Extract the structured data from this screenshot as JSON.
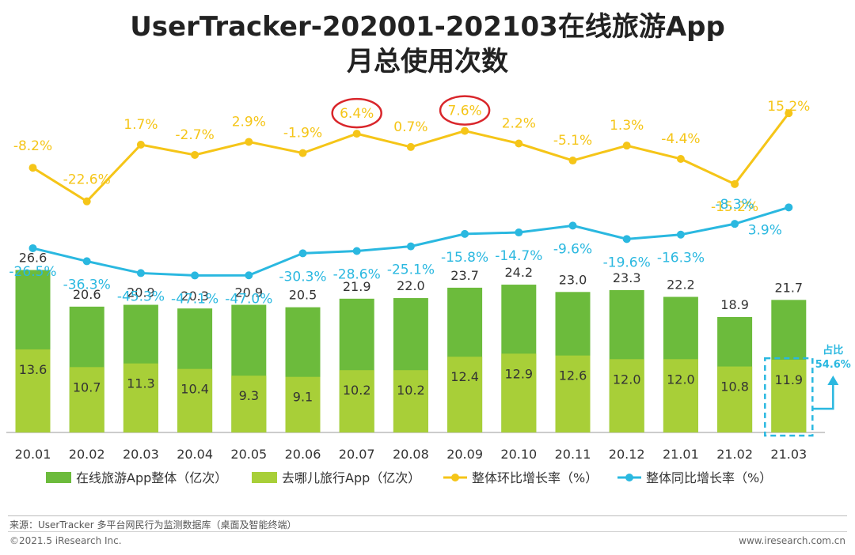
{
  "chart_data": {
    "type": "bar+line",
    "title_line1": "UserTracker-202001-202103在线旅游App",
    "title_line2": "月总使用次数",
    "categories": [
      "20.01",
      "20.02",
      "20.03",
      "20.04",
      "20.05",
      "20.06",
      "20.07",
      "20.08",
      "20.09",
      "20.10",
      "20.11",
      "20.12",
      "21.01",
      "21.02",
      "21.03"
    ],
    "bar_series": [
      {
        "name": "在线旅游App整体（亿次）",
        "color": "#6cbb3c",
        "values": [
          26.6,
          20.6,
          20.9,
          20.3,
          20.9,
          20.5,
          21.9,
          22.0,
          23.7,
          24.2,
          23.0,
          23.3,
          22.2,
          18.9,
          21.7
        ]
      },
      {
        "name": "去哪儿旅行App（亿次）",
        "color": "#a8cf38",
        "values": [
          13.6,
          10.7,
          11.3,
          10.4,
          9.3,
          9.1,
          10.2,
          10.2,
          12.4,
          12.9,
          12.6,
          12.0,
          12.0,
          10.8,
          11.9
        ]
      }
    ],
    "line_series": [
      {
        "name": "整体环比增长率（%）",
        "color": "#f5c518",
        "values": [
          -8.2,
          -22.6,
          1.7,
          -2.7,
          2.9,
          -1.9,
          6.4,
          0.7,
          7.6,
          2.2,
          -5.1,
          1.3,
          -4.4,
          -15.2,
          15.2
        ],
        "labels": [
          "-8.2%",
          "-22.6%",
          "1.7%",
          "-2.7%",
          "2.9%",
          "-1.9%",
          "6.4%",
          "0.7%",
          "7.6%",
          "2.2%",
          "-5.1%",
          "1.3%",
          "-4.4%",
          "-15.2%",
          "15.2%"
        ]
      },
      {
        "name": "整体同比增长率（%）",
        "color": "#2ab8e0",
        "values": [
          -26.5,
          -36.3,
          -45.3,
          -47.1,
          -47.0,
          -30.3,
          -28.6,
          -25.1,
          -15.8,
          -14.7,
          -9.6,
          -19.6,
          -16.3,
          -8.3,
          3.9
        ],
        "labels": [
          "-26.5%",
          "-36.3%",
          "-45.3%",
          "-47.1%",
          "-47.0%",
          "-30.3%",
          "-28.6%",
          "-25.1%",
          "-15.8%",
          "-14.7%",
          "-9.6%",
          "-19.6%",
          "-16.3%",
          "-8.3%",
          "3.9%"
        ]
      }
    ],
    "highlighted_points": [
      "20.07",
      "20.09"
    ],
    "highlight_circle_color": "#d9262b",
    "share_callout": {
      "category": "21.03",
      "label_line1": "占比",
      "label_line2": "54.6%",
      "color": "#2ab8e0"
    }
  },
  "footer": {
    "source": "来源：UserTracker 多平台网民行为监测数据库（桌面及智能终端）",
    "copyright": "©2021.5 iResearch Inc.",
    "website": "www.iresearch.com.cn"
  }
}
